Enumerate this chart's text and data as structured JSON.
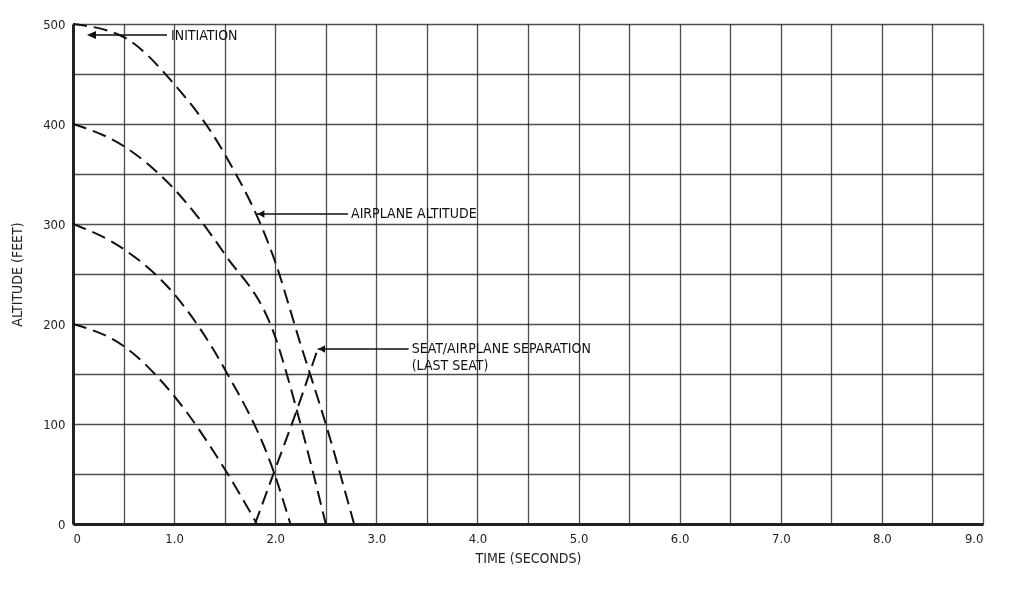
{
  "chart_data": {
    "type": "line",
    "xlabel": "TIME (SECONDS)",
    "ylabel": "ALTITUDE (FEET)",
    "xlim": [
      0,
      9
    ],
    "ylim": [
      0,
      500
    ],
    "xticks": [
      0,
      {
        "value": 0.5,
        "label": null
      },
      {
        "value": 1,
        "label": "1.0"
      },
      {
        "value": 1.5,
        "label": null
      },
      {
        "value": 2,
        "label": "2.0"
      },
      {
        "value": 2.5,
        "label": null
      },
      {
        "value": 3,
        "label": "3.0"
      },
      {
        "value": 3.5,
        "label": null
      },
      {
        "value": 4,
        "label": "4.0"
      },
      {
        "value": 4.5,
        "label": null
      },
      {
        "value": 5,
        "label": "5.0"
      },
      {
        "value": 5.5,
        "label": null
      },
      {
        "value": 6,
        "label": "6.0"
      },
      {
        "value": 6.5,
        "label": null
      },
      {
        "value": 7,
        "label": "7.0"
      },
      {
        "value": 7.5,
        "label": null
      },
      {
        "value": 8,
        "label": "8.0"
      },
      {
        "value": 8.5,
        "label": null
      },
      {
        "value": 9,
        "label": "9.0"
      }
    ],
    "yticks": [
      0,
      {
        "value": 50,
        "label": null
      },
      100,
      {
        "value": 150,
        "label": null
      },
      200,
      {
        "value": 250,
        "label": null
      },
      300,
      {
        "value": 350,
        "label": null
      },
      400,
      {
        "value": 450,
        "label": null
      },
      500
    ],
    "grid": true,
    "marker": "none",
    "series": [
      {
        "color": "#111111",
        "line_style": "dashed",
        "x": [
          0,
          0.5,
          1.0,
          1.5,
          2.0,
          2.25,
          2.5,
          2.78
        ],
        "values": [
          500,
          487,
          440,
          370,
          262,
          180,
          100,
          0
        ]
      },
      {
        "color": "#111111",
        "line_style": "dashed",
        "x": [
          0,
          0.5,
          1.0,
          1.5,
          2.0,
          2.25,
          2.5
        ],
        "values": [
          400,
          378,
          335,
          270,
          187,
          100,
          0
        ]
      },
      {
        "color": "#111111",
        "line_style": "dashed",
        "x": [
          0,
          0.5,
          1.0,
          1.5,
          2.0,
          2.15
        ],
        "values": [
          300,
          275,
          230,
          155,
          48,
          0
        ]
      },
      {
        "color": "#111111",
        "line_style": "dashed",
        "x": [
          0,
          0.5,
          1.0,
          1.5,
          1.82
        ],
        "values": [
          200,
          178,
          128,
          55,
          0
        ]
      },
      {
        "color": "#111111",
        "line_style": "dashed",
        "x": [
          1.8,
          2.0,
          2.2,
          2.42
        ],
        "values": [
          0,
          55,
          110,
          175
        ]
      }
    ],
    "annotations": [
      "INITIATION",
      {
        "text": "AIRPLANE ALTITUDE",
        "x": 1.82,
        "y": 310
      },
      {
        "text": "SEAT/AIRPLANE SEPARATION\n(LAST SEAT)",
        "x": 2.42,
        "y": 175
      }
    ]
  }
}
